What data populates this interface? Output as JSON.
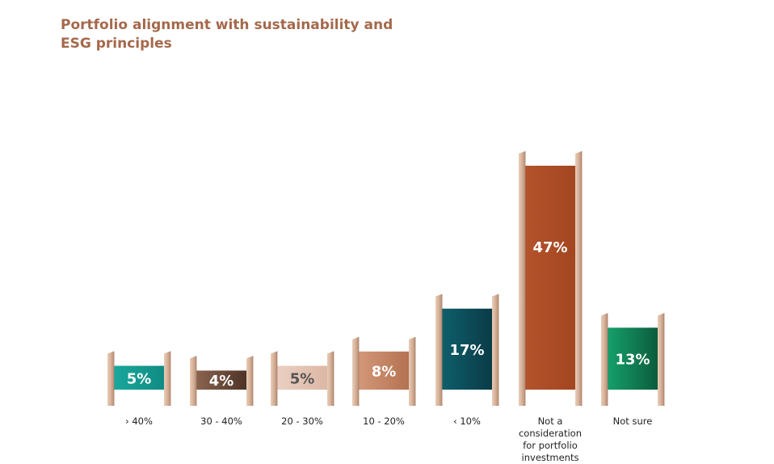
{
  "chart_data": {
    "type": "bar",
    "title_lines": [
      "Portfolio alignment with sustainability and",
      "ESG principles"
    ],
    "categories": [
      [
        "› 40%"
      ],
      [
        "30 - 40%"
      ],
      [
        "20 - 30%"
      ],
      [
        "10 - 20%"
      ],
      [
        "‹ 10%"
      ],
      [
        "Not a",
        "consideration",
        "for portfolio",
        "investments"
      ],
      [
        "Not sure"
      ]
    ],
    "values": [
      5,
      4,
      5,
      8,
      17,
      47,
      13
    ],
    "value_labels": [
      "5%",
      "4%",
      "5%",
      "8%",
      "17%",
      "47%",
      "13%"
    ],
    "unit": "%",
    "colors": [
      [
        "#1aa79b",
        "#0f8c83"
      ],
      [
        "#8a6450",
        "#4e3327"
      ],
      [
        "#ead0c2",
        "#dcb7a5"
      ],
      [
        "#d29878",
        "#b47252"
      ],
      [
        "#0e5f6b",
        "#0a3b47"
      ],
      [
        "#b4532c",
        "#a24621"
      ],
      [
        "#16a06b",
        "#0b5c3c"
      ]
    ],
    "label_colors": [
      "#ffffff",
      "#ffffff",
      "#555555",
      "#ffffff",
      "#ffffff",
      "#ffffff",
      "#ffffff"
    ],
    "post_color": "#d7b39b",
    "ylim": [
      0,
      50
    ],
    "grid": false,
    "legend": "none"
  }
}
